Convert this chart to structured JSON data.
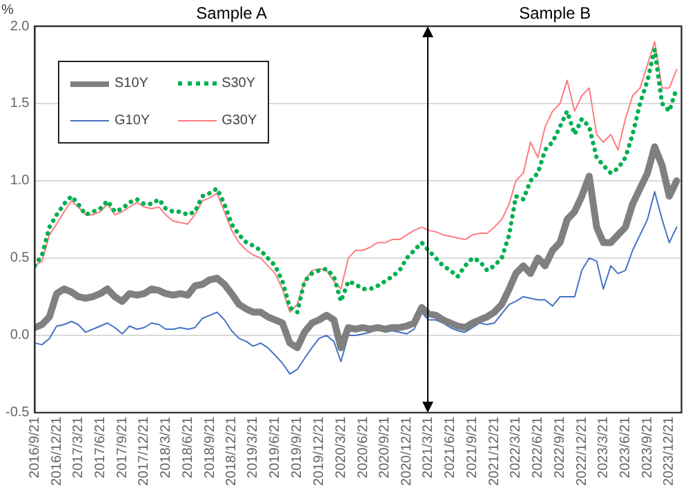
{
  "chart_data": {
    "type": "line",
    "ylabel": "%",
    "annotations": [
      "Sample A",
      "Sample B"
    ],
    "x": [
      "2016-09-21",
      "2016-10-21",
      "2016-11-21",
      "2016-12-21",
      "2017-01-21",
      "2017-02-21",
      "2017-03-21",
      "2017-04-21",
      "2017-05-21",
      "2017-06-21",
      "2017-07-21",
      "2017-08-21",
      "2017-09-21",
      "2017-10-21",
      "2017-11-21",
      "2017-12-21",
      "2018-01-21",
      "2018-02-21",
      "2018-03-21",
      "2018-04-21",
      "2018-05-21",
      "2018-06-21",
      "2018-07-21",
      "2018-08-21",
      "2018-09-21",
      "2018-10-21",
      "2018-11-21",
      "2018-12-21",
      "2019-01-21",
      "2019-02-21",
      "2019-03-21",
      "2019-04-21",
      "2019-05-21",
      "2019-06-21",
      "2019-07-21",
      "2019-08-21",
      "2019-09-21",
      "2019-10-21",
      "2019-11-21",
      "2019-12-21",
      "2020-01-21",
      "2020-02-21",
      "2020-03-21",
      "2020-04-21",
      "2020-05-21",
      "2020-06-21",
      "2020-07-21",
      "2020-08-21",
      "2020-09-21",
      "2020-10-21",
      "2020-11-21",
      "2020-12-21",
      "2021-01-21",
      "2021-02-21",
      "2021-03-21",
      "2021-04-21",
      "2021-05-21",
      "2021-06-21",
      "2021-07-21",
      "2021-08-21",
      "2021-09-21",
      "2021-10-21",
      "2021-11-21",
      "2021-12-21",
      "2022-01-21",
      "2022-02-21",
      "2022-03-21",
      "2022-04-21",
      "2022-05-21",
      "2022-06-21",
      "2022-07-21",
      "2022-08-21",
      "2022-09-21",
      "2022-10-21",
      "2022-11-21",
      "2022-12-21",
      "2023-01-21",
      "2023-02-21",
      "2023-03-21",
      "2023-04-21",
      "2023-05-21",
      "2023-06-21",
      "2023-07-21",
      "2023-08-21",
      "2023-09-21",
      "2023-10-21",
      "2023-11-21",
      "2023-12-21",
      "2024-01-21"
    ],
    "series": [
      {
        "name": "S10Y",
        "color": "#808080",
        "line_style": "solid",
        "values": [
          0.05,
          0.07,
          0.12,
          0.27,
          0.3,
          0.28,
          0.25,
          0.24,
          0.25,
          0.27,
          0.3,
          0.25,
          0.22,
          0.27,
          0.26,
          0.27,
          0.3,
          0.29,
          0.27,
          0.26,
          0.27,
          0.26,
          0.32,
          0.33,
          0.36,
          0.37,
          0.33,
          0.27,
          0.2,
          0.17,
          0.15,
          0.15,
          0.12,
          0.1,
          0.08,
          -0.05,
          -0.08,
          0.02,
          0.08,
          0.1,
          0.13,
          0.1,
          -0.08,
          0.05,
          0.04,
          0.05,
          0.04,
          0.05,
          0.04,
          0.05,
          0.05,
          0.06,
          0.08,
          0.18,
          0.14,
          0.13,
          0.1,
          0.08,
          0.06,
          0.05,
          0.08,
          0.1,
          0.12,
          0.15,
          0.2,
          0.3,
          0.4,
          0.45,
          0.4,
          0.5,
          0.45,
          0.55,
          0.6,
          0.75,
          0.8,
          0.9,
          1.03,
          0.7,
          0.6,
          0.6,
          0.65,
          0.7,
          0.85,
          0.95,
          1.05,
          1.22,
          1.1,
          0.9,
          1.0
        ]
      },
      {
        "name": "S30Y",
        "color": "#00b050",
        "line_style": "dotted",
        "values": [
          0.45,
          0.52,
          0.7,
          0.78,
          0.85,
          0.9,
          0.85,
          0.78,
          0.8,
          0.82,
          0.87,
          0.8,
          0.82,
          0.86,
          0.88,
          0.85,
          0.85,
          0.88,
          0.82,
          0.8,
          0.8,
          0.78,
          0.8,
          0.9,
          0.92,
          0.95,
          0.85,
          0.72,
          0.65,
          0.6,
          0.58,
          0.55,
          0.5,
          0.45,
          0.35,
          0.18,
          0.15,
          0.35,
          0.4,
          0.42,
          0.43,
          0.38,
          0.22,
          0.35,
          0.33,
          0.3,
          0.3,
          0.32,
          0.35,
          0.38,
          0.42,
          0.5,
          0.55,
          0.6,
          0.55,
          0.5,
          0.45,
          0.42,
          0.38,
          0.45,
          0.5,
          0.48,
          0.42,
          0.45,
          0.5,
          0.65,
          0.9,
          0.88,
          1.0,
          1.05,
          1.2,
          1.25,
          1.35,
          1.45,
          1.3,
          1.4,
          1.35,
          1.15,
          1.1,
          1.05,
          1.08,
          1.15,
          1.3,
          1.5,
          1.65,
          1.85,
          1.5,
          1.45,
          1.6
        ]
      },
      {
        "name": "G10Y",
        "color": "#4472c4",
        "line_style": "solid",
        "values": [
          -0.05,
          -0.06,
          -0.02,
          0.06,
          0.07,
          0.09,
          0.07,
          0.02,
          0.04,
          0.06,
          0.08,
          0.05,
          0.01,
          0.06,
          0.04,
          0.05,
          0.08,
          0.07,
          0.04,
          0.04,
          0.05,
          0.04,
          0.05,
          0.11,
          0.13,
          0.15,
          0.1,
          0.03,
          -0.02,
          -0.04,
          -0.07,
          -0.05,
          -0.08,
          -0.13,
          -0.18,
          -0.25,
          -0.22,
          -0.15,
          -0.08,
          -0.02,
          0.0,
          -0.04,
          -0.17,
          0.0,
          0.0,
          0.01,
          0.02,
          0.04,
          0.02,
          0.03,
          0.02,
          0.01,
          0.04,
          0.15,
          0.1,
          0.1,
          0.08,
          0.05,
          0.03,
          0.02,
          0.05,
          0.08,
          0.07,
          0.08,
          0.14,
          0.2,
          0.22,
          0.25,
          0.24,
          0.23,
          0.23,
          0.19,
          0.25,
          0.25,
          0.25,
          0.42,
          0.5,
          0.48,
          0.3,
          0.45,
          0.4,
          0.42,
          0.55,
          0.65,
          0.75,
          0.93,
          0.75,
          0.6,
          0.7
        ]
      },
      {
        "name": "G30Y",
        "color": "#ff7c80",
        "line_style": "solid",
        "values": [
          0.45,
          0.48,
          0.65,
          0.72,
          0.8,
          0.87,
          0.83,
          0.78,
          0.78,
          0.8,
          0.85,
          0.78,
          0.8,
          0.83,
          0.86,
          0.83,
          0.82,
          0.83,
          0.78,
          0.74,
          0.73,
          0.72,
          0.78,
          0.87,
          0.89,
          0.92,
          0.8,
          0.68,
          0.6,
          0.55,
          0.52,
          0.5,
          0.45,
          0.4,
          0.3,
          0.15,
          0.2,
          0.35,
          0.42,
          0.43,
          0.42,
          0.35,
          0.3,
          0.5,
          0.55,
          0.55,
          0.57,
          0.6,
          0.6,
          0.62,
          0.62,
          0.65,
          0.68,
          0.7,
          0.68,
          0.67,
          0.65,
          0.64,
          0.63,
          0.62,
          0.65,
          0.66,
          0.66,
          0.7,
          0.75,
          0.85,
          1.0,
          1.05,
          1.25,
          1.15,
          1.35,
          1.45,
          1.5,
          1.65,
          1.45,
          1.55,
          1.6,
          1.3,
          1.25,
          1.3,
          1.2,
          1.4,
          1.55,
          1.6,
          1.75,
          1.9,
          1.6,
          1.6,
          1.72
        ]
      }
    ],
    "xlim": [
      "2016-09-21",
      "2024-02-10"
    ],
    "xticks": [
      {
        "value": "2016-09-21",
        "label": "2016/9/21"
      },
      {
        "value": "2016-12-21",
        "label": "2016/12/21"
      },
      {
        "value": "2017-03-21",
        "label": "2017/3/21"
      },
      {
        "value": "2017-06-21",
        "label": "2017/6/21"
      },
      {
        "value": "2017-09-21",
        "label": "2017/9/21"
      },
      {
        "value": "2017-12-21",
        "label": "2017/12/21"
      },
      {
        "value": "2018-03-21",
        "label": "2018/3/21"
      },
      {
        "value": "2018-06-21",
        "label": "2018/6/21"
      },
      {
        "value": "2018-09-21",
        "label": "2018/9/21"
      },
      {
        "value": "2018-12-21",
        "label": "2018/12/21"
      },
      {
        "value": "2019-03-21",
        "label": "2019/3/21"
      },
      {
        "value": "2019-06-21",
        "label": "2019/6/21"
      },
      {
        "value": "2019-09-21",
        "label": "2019/9/21"
      },
      {
        "value": "2019-12-21",
        "label": "2019/12/21"
      },
      {
        "value": "2020-03-21",
        "label": "2020/3/21"
      },
      {
        "value": "2020-06-21",
        "label": "2020/6/21"
      },
      {
        "value": "2020-09-21",
        "label": "2020/9/21"
      },
      {
        "value": "2020-12-21",
        "label": "2020/12/21"
      },
      {
        "value": "2021-03-21",
        "label": "2021/3/21"
      },
      {
        "value": "2021-06-21",
        "label": "2021/6/21"
      },
      {
        "value": "2021-09-21",
        "label": "2021/9/21"
      },
      {
        "value": "2021-12-21",
        "label": "2021/12/21"
      },
      {
        "value": "2022-03-21",
        "label": "2022/3/21"
      },
      {
        "value": "2022-06-21",
        "label": "2022/6/21"
      },
      {
        "value": "2022-09-21",
        "label": "2022/9/21"
      },
      {
        "value": "2022-12-21",
        "label": "2022/12/21"
      },
      {
        "value": "2023-03-21",
        "label": "2023/3/21"
      },
      {
        "value": "2023-06-21",
        "label": "2023/6/21"
      },
      {
        "value": "2023-09-21",
        "label": "2023/9/21"
      },
      {
        "value": "2023-12-21",
        "label": "2023/12/21"
      }
    ],
    "ylim": [
      -0.5,
      2.0
    ],
    "yticks": [
      {
        "value": -0.5,
        "label": "-0.5"
      },
      {
        "value": 0,
        "label": "0.0"
      },
      {
        "value": 0.5,
        "label": "0.5"
      },
      {
        "value": 1.0,
        "label": "1.0"
      },
      {
        "value": 1.5,
        "label": "1.5"
      },
      {
        "value": 2.0,
        "label": "2.0"
      }
    ],
    "ref_lines": [
      {
        "axis": "x",
        "value": "2021-03-21",
        "color": "#000000"
      }
    ],
    "grid": "y",
    "legend": "top left",
    "marker": "none"
  }
}
